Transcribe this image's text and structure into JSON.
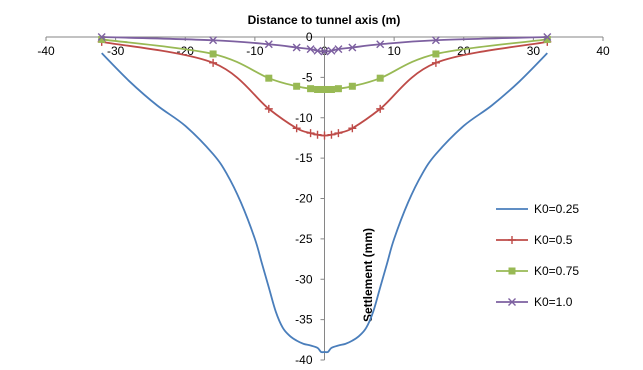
{
  "chart_data": {
    "type": "line",
    "title": "Distance to tunnel axis (m)",
    "xlabel": "Distance to tunnel axis (m)",
    "ylabel": "Settlement (mm)",
    "xlim": [
      -40,
      40
    ],
    "ylim": [
      -40,
      0
    ],
    "xticks": [
      -40,
      -30,
      -20,
      -10,
      0,
      10,
      20,
      30,
      40
    ],
    "yticks": [
      0,
      -5,
      -10,
      -15,
      -20,
      -25,
      -30,
      -35,
      -40
    ],
    "x_axis_position": "top",
    "y_axis_position": "center",
    "grid": false,
    "legend_position": "right",
    "series": [
      {
        "name": "K0=0.25",
        "color": "#4a7ebb",
        "marker": "none",
        "x": [
          -32,
          -28,
          -24,
          -20,
          -16,
          -14,
          -12,
          -10,
          -9,
          -8,
          -7,
          -6,
          -5,
          -4,
          -3,
          -2,
          -1,
          -0.5,
          0,
          0.5,
          1,
          2,
          3,
          4,
          5,
          6,
          7,
          8,
          9,
          10,
          12,
          14,
          16,
          20,
          24,
          28,
          32
        ],
        "values": [
          -2,
          -5.5,
          -8.5,
          -11,
          -14.5,
          -17,
          -20.5,
          -25,
          -28,
          -31,
          -34,
          -36,
          -37,
          -37.6,
          -38,
          -38.2,
          -38.5,
          -39,
          -39,
          -39,
          -38.5,
          -38.2,
          -38,
          -37.6,
          -37,
          -36,
          -34,
          -31,
          -28,
          -25,
          -20.5,
          -17,
          -14.5,
          -11,
          -8.5,
          -5.5,
          -2
        ]
      },
      {
        "name": "K0=0.5",
        "color": "#be4b48",
        "marker": "plus",
        "x": [
          -32,
          -16,
          -8,
          -4,
          -2,
          -1,
          0,
          1,
          2,
          4,
          8,
          16,
          32
        ],
        "values": [
          -0.6,
          -3.2,
          -8.9,
          -11.3,
          -11.9,
          -12.1,
          -12.2,
          -12.1,
          -11.9,
          -11.3,
          -8.9,
          -3.2,
          -0.6
        ]
      },
      {
        "name": "K0=0.75",
        "color": "#98b954",
        "marker": "square",
        "x": [
          -32,
          -16,
          -8,
          -4,
          -2,
          -1,
          0,
          1,
          2,
          4,
          8,
          16,
          32
        ],
        "values": [
          -0.3,
          -2.1,
          -5.1,
          -6.1,
          -6.4,
          -6.5,
          -6.5,
          -6.5,
          -6.4,
          -6.1,
          -5.1,
          -2.1,
          -0.3
        ]
      },
      {
        "name": "K0=1.0",
        "color": "#7d60a0",
        "marker": "x",
        "x": [
          -32,
          -16,
          -8,
          -4,
          -2,
          -1,
          0,
          1,
          2,
          4,
          8,
          16,
          32
        ],
        "values": [
          0,
          -0.4,
          -0.9,
          -1.3,
          -1.5,
          -1.7,
          -1.8,
          -1.7,
          -1.5,
          -1.3,
          -0.9,
          -0.4,
          0
        ]
      }
    ]
  }
}
